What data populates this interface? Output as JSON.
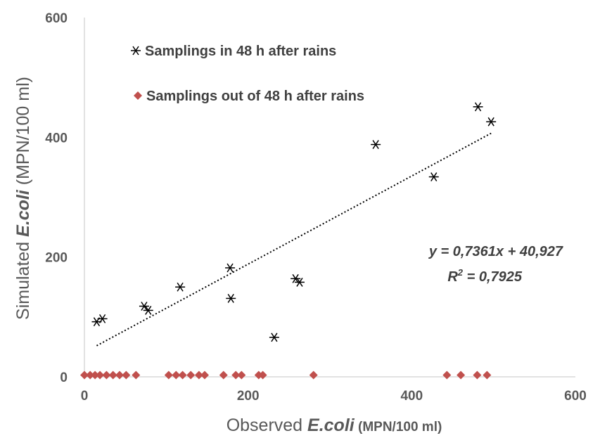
{
  "chart_data": {
    "type": "scatter",
    "xlim": [
      0,
      600
    ],
    "ylim": [
      0,
      600
    ],
    "x_ticks": [
      "0",
      "200",
      "400",
      "600"
    ],
    "y_ticks": [
      "0",
      "200",
      "400",
      "600"
    ],
    "grid": false,
    "legend_position": "top-left",
    "xlabel": {
      "prefix": "Observed ",
      "italic": "E.coli",
      "suffix": " (MPN/100 ml)"
    },
    "ylabel": {
      "prefix": "Simulated ",
      "italic": "E.coli",
      "suffix": " (MPN/100 ml)"
    },
    "series": [
      {
        "name": "Samplings in 48 h after rains",
        "marker": "asterisk",
        "color": "#000000",
        "points": [
          [
            15,
            92
          ],
          [
            22,
            97
          ],
          [
            73,
            118
          ],
          [
            78,
            111
          ],
          [
            117,
            150
          ],
          [
            178,
            182
          ],
          [
            179,
            131
          ],
          [
            232,
            66
          ],
          [
            258,
            164
          ],
          [
            263,
            158
          ],
          [
            356,
            388
          ],
          [
            427,
            334
          ],
          [
            481,
            451
          ],
          [
            497,
            426
          ]
        ]
      },
      {
        "name": "Samplings out of 48 h after rains",
        "marker": "diamond",
        "color": "#c0504d",
        "points": [
          [
            0,
            3
          ],
          [
            7,
            3
          ],
          [
            13,
            3
          ],
          [
            19,
            3
          ],
          [
            27,
            3
          ],
          [
            35,
            3
          ],
          [
            43,
            3
          ],
          [
            51,
            3
          ],
          [
            63,
            3
          ],
          [
            103,
            3
          ],
          [
            112,
            3
          ],
          [
            120,
            3
          ],
          [
            130,
            3
          ],
          [
            140,
            3
          ],
          [
            147,
            3
          ],
          [
            170,
            3
          ],
          [
            185,
            3
          ],
          [
            192,
            3
          ],
          [
            213,
            3
          ],
          [
            218,
            3
          ],
          [
            280,
            3
          ],
          [
            443,
            3
          ],
          [
            460,
            3
          ],
          [
            480,
            3
          ],
          [
            492,
            3
          ]
        ]
      }
    ],
    "trendline": {
      "style": "dotted",
      "color": "#000000",
      "slope": 0.7361,
      "intercept": 40.927,
      "x_range": [
        15,
        497
      ]
    },
    "annotations": {
      "equation": "y = 0,7361x + 40,927",
      "r2_label": "R",
      "r2_exp": "2",
      "r2_value": " = 0,7925"
    }
  }
}
